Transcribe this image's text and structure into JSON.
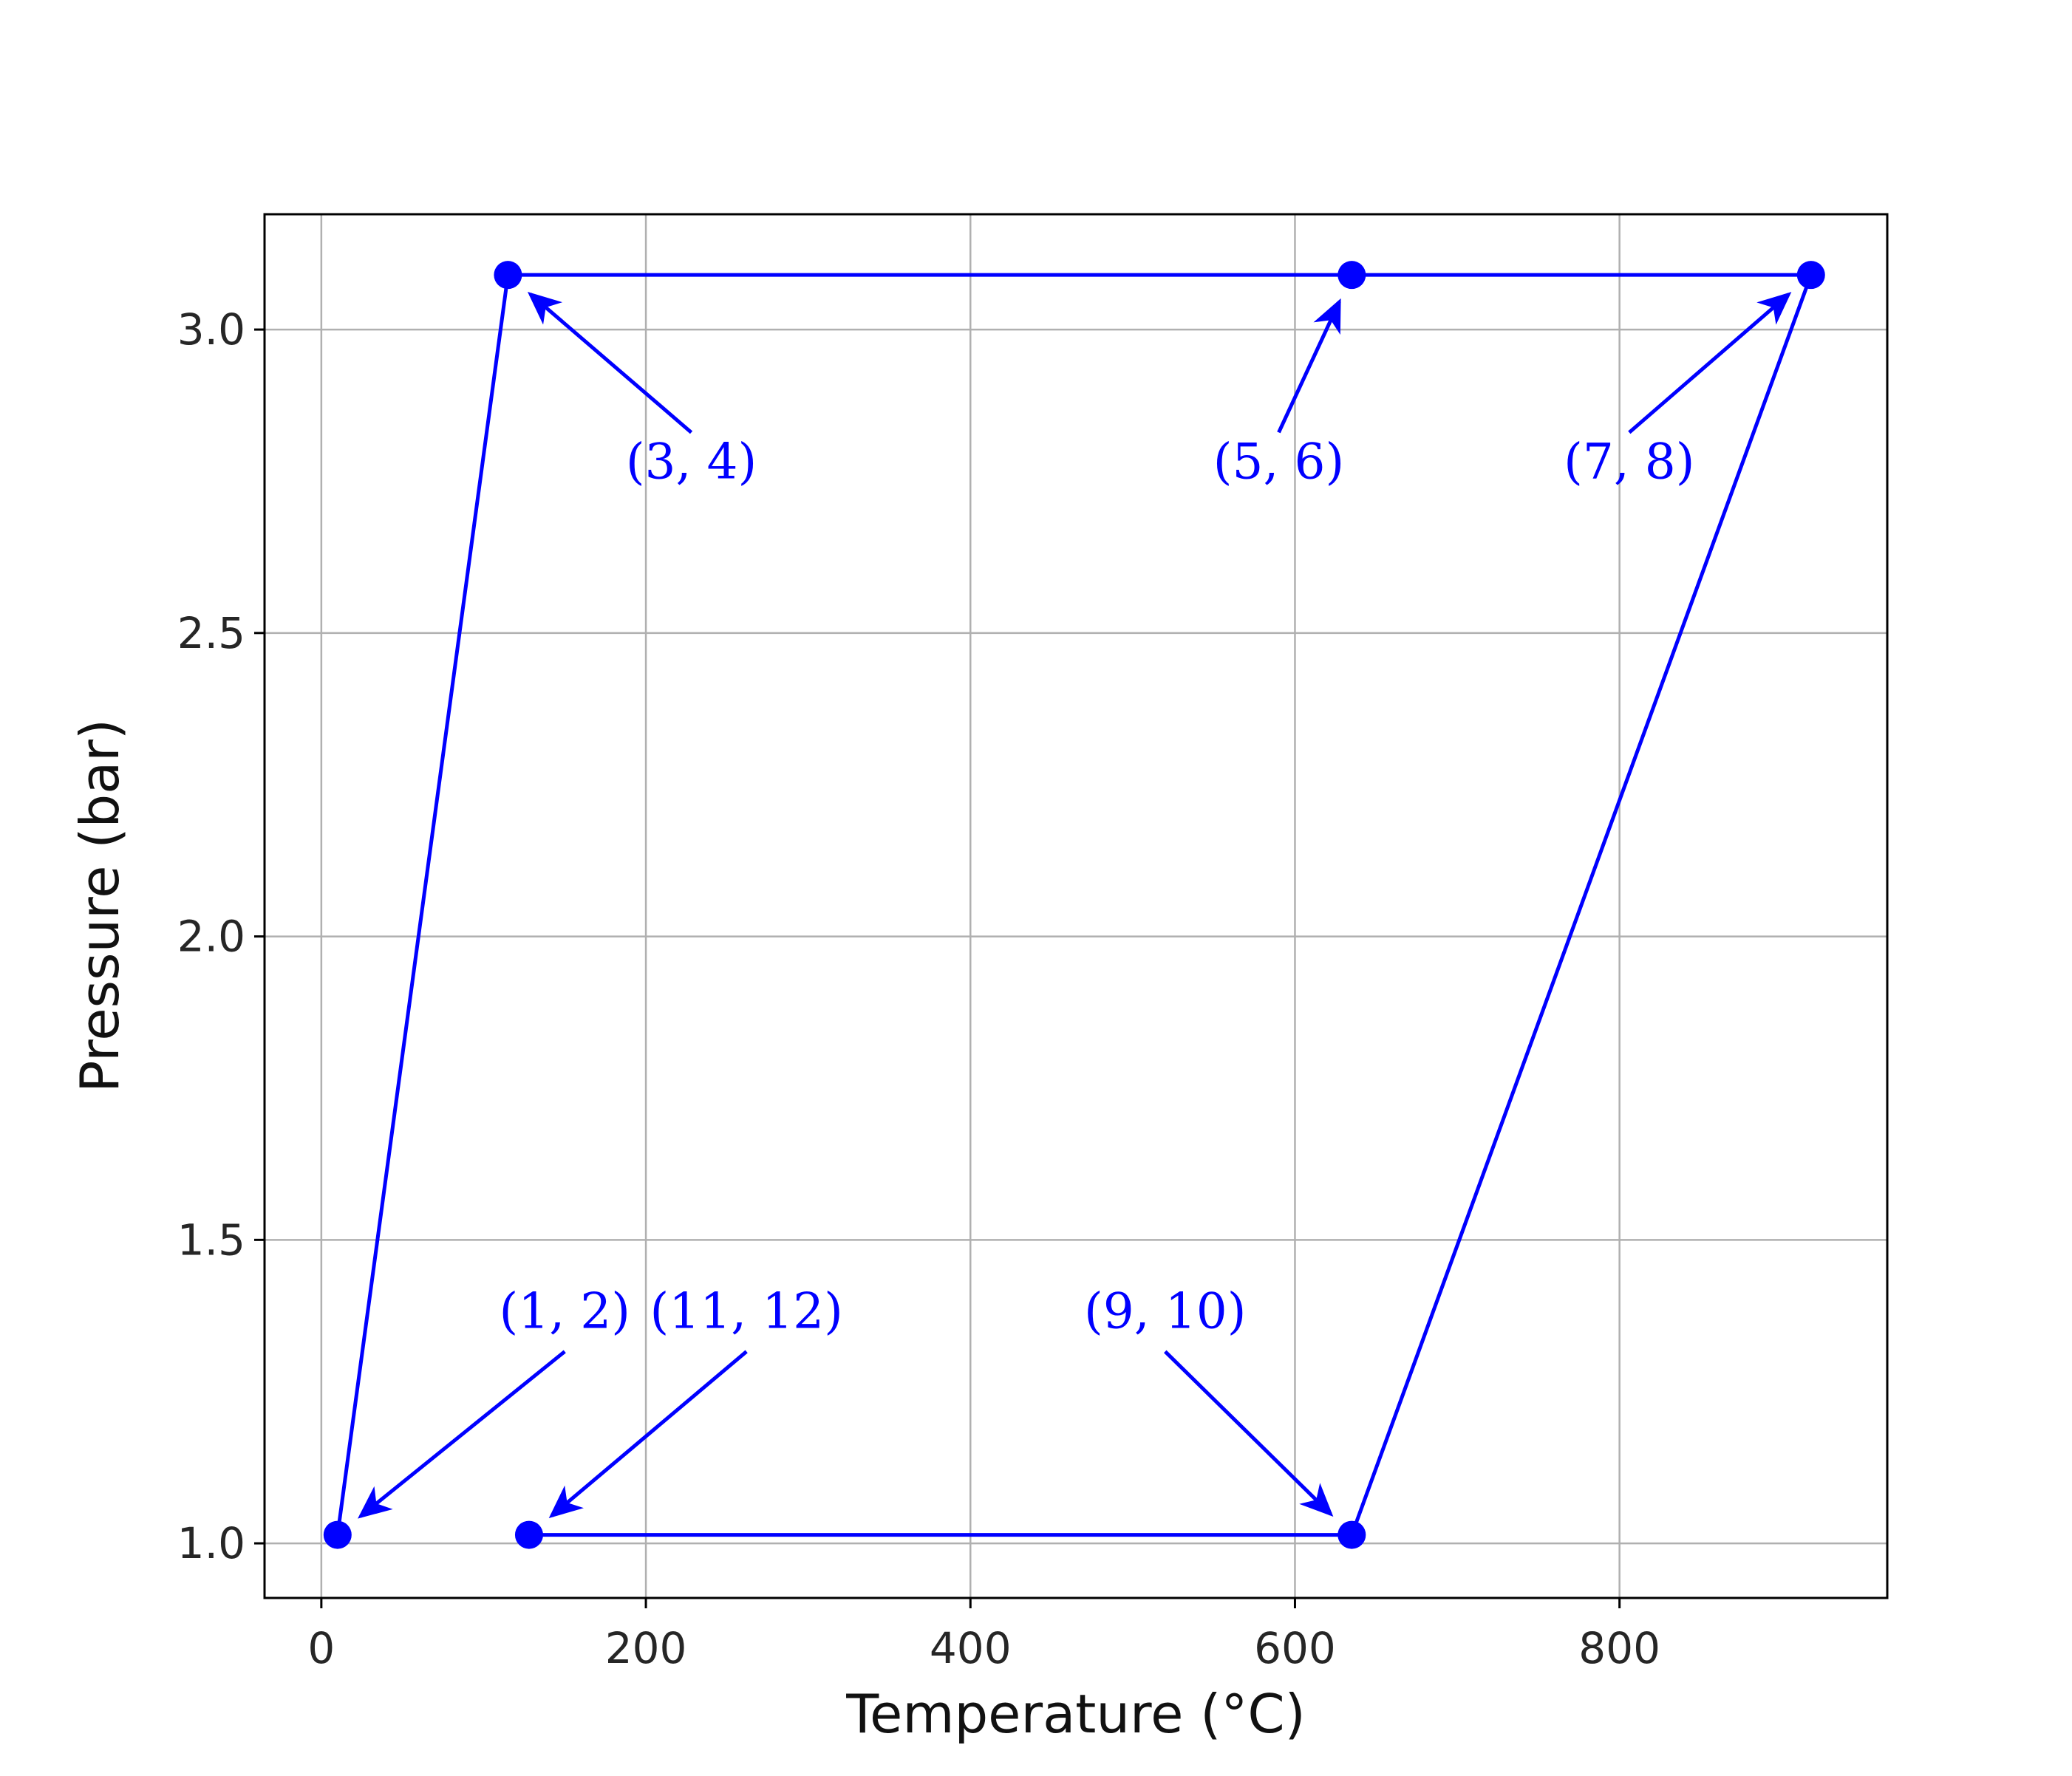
{
  "colors": {
    "series": "#0000ff",
    "grid": "#b0b0b0",
    "frame": "#000000",
    "text": "#262626"
  },
  "chart_data": {
    "type": "line",
    "title": "",
    "xlabel": "Temperature (°C)",
    "ylabel": "Pressure (bar)",
    "xlim": [
      -35,
      965
    ],
    "ylim": [
      0.91,
      3.19
    ],
    "xticks": [
      0,
      200,
      400,
      600,
      800
    ],
    "yticks": [
      1.0,
      1.5,
      2.0,
      2.5,
      3.0
    ],
    "xtick_labels": [
      "0",
      "200",
      "400",
      "600",
      "800"
    ],
    "ytick_labels": [
      "1.0",
      "1.5",
      "2.0",
      "2.5",
      "3.0"
    ],
    "grid": true,
    "markers": true,
    "series": [
      {
        "x": [
          10,
          115,
          635,
          918,
          635,
          128
        ],
        "y": [
          1.014,
          3.09,
          3.09,
          3.09,
          1.014,
          1.014
        ]
      }
    ],
    "annotations": [
      {
        "text": "(1, 2)",
        "point": [
          10,
          1.014
        ],
        "text_at": [
          150,
          1.355
        ]
      },
      {
        "text": "(3, 4)",
        "point": [
          115,
          3.09
        ],
        "text_at": [
          228,
          2.755
        ]
      },
      {
        "text": "(5, 6)",
        "point": [
          635,
          3.09
        ],
        "text_at": [
          590,
          2.755
        ]
      },
      {
        "text": "(7, 8)",
        "point": [
          918,
          3.09
        ],
        "text_at": [
          806,
          2.755
        ]
      },
      {
        "text": "(9, 10)",
        "point": [
          635,
          1.014
        ],
        "text_at": [
          520,
          1.355
        ]
      },
      {
        "text": "(11, 12)",
        "point": [
          128,
          1.014
        ],
        "text_at": [
          262,
          1.355
        ]
      }
    ]
  }
}
